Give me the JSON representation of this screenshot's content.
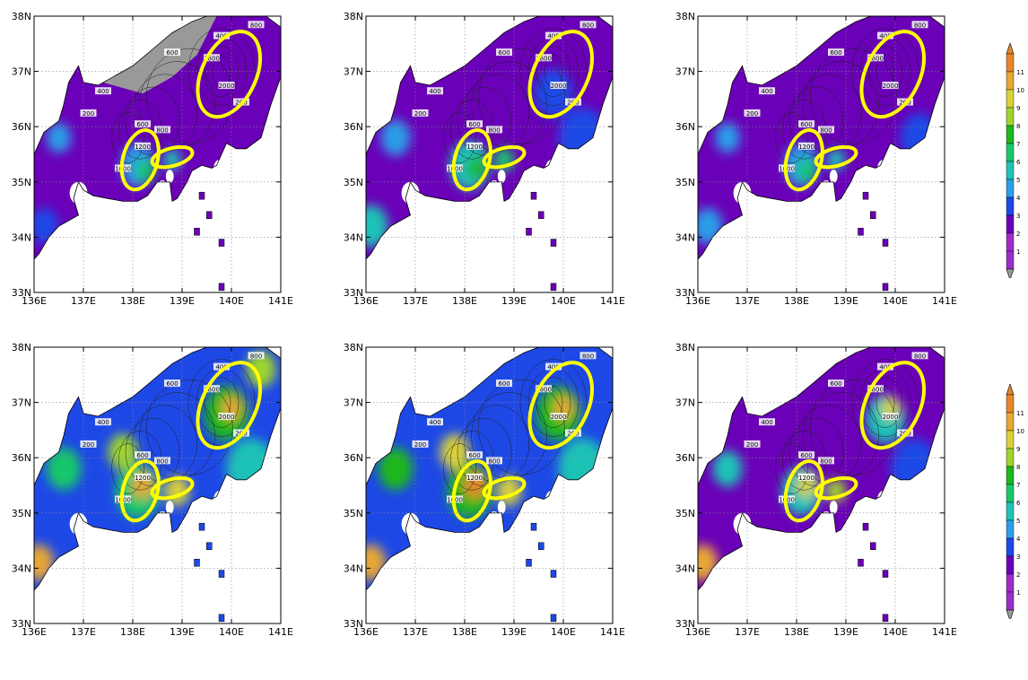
{
  "lat_labels": [
    "38N",
    "37N",
    "36N",
    "35N",
    "34N",
    "33N"
  ],
  "lon_labels": [
    "136E",
    "137E",
    "138E",
    "139E",
    "140E",
    "141E"
  ],
  "colorbar": {
    "levels": [
      "1",
      "2",
      "3",
      "4",
      "5",
      "6",
      "7",
      "8",
      "9",
      "10",
      "11"
    ],
    "colors": [
      "#9a2fc8",
      "#a22bc8",
      "#6a00b8",
      "#1e48e6",
      "#2c9ee8",
      "#1fc2b6",
      "#18c76a",
      "#1db71d",
      "#9fd42e",
      "#d8d13a",
      "#e7a734",
      "#e8862c"
    ],
    "under_color": "#999999",
    "over_color": "#e8862c"
  },
  "contour_labels": [
    "200",
    "400",
    "600",
    "800",
    "1000",
    "1200",
    "1600",
    "2000"
  ],
  "panels": [
    {
      "id": "top-left",
      "style": "dry",
      "ellipses": 3
    },
    {
      "id": "top-center",
      "style": "mid",
      "ellipses": 3
    },
    {
      "id": "top-right",
      "style": "dry2",
      "ellipses": 3
    },
    {
      "id": "bottom-left",
      "style": "wet",
      "ellipses": 3
    },
    {
      "id": "bottom-center",
      "style": "wet2",
      "ellipses": 3
    },
    {
      "id": "bottom-right",
      "style": "mid2",
      "ellipses": 3
    }
  ],
  "highlight_color": "#ffff00"
}
